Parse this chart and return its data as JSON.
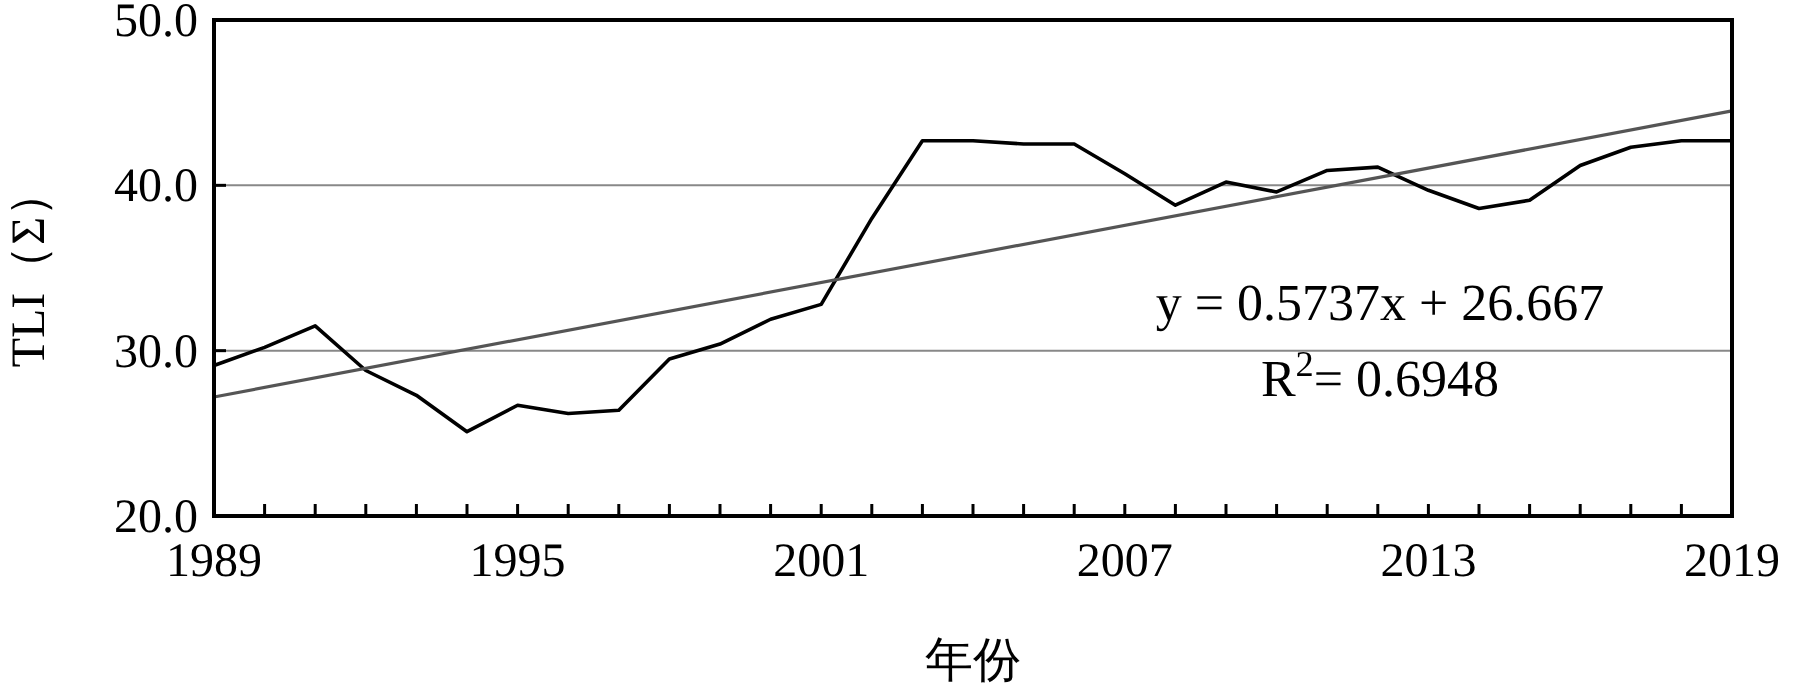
{
  "chart_data": {
    "type": "line",
    "ylabel": "TLI（Σ）",
    "xlabel": "年份",
    "xlim": [
      1989,
      2019
    ],
    "xticks": [
      1989,
      {
        "value": 1990,
        "label": null
      },
      {
        "value": 1991,
        "label": null
      },
      {
        "value": 1992,
        "label": null
      },
      {
        "value": 1993,
        "label": null
      },
      {
        "value": 1994,
        "label": null
      },
      1995,
      {
        "value": 1996,
        "label": null
      },
      {
        "value": 1997,
        "label": null
      },
      {
        "value": 1998,
        "label": null
      },
      {
        "value": 1999,
        "label": null
      },
      {
        "value": 2000,
        "label": null
      },
      2001,
      {
        "value": 2002,
        "label": null
      },
      {
        "value": 2003,
        "label": null
      },
      {
        "value": 2004,
        "label": null
      },
      {
        "value": 2005,
        "label": null
      },
      {
        "value": 2006,
        "label": null
      },
      2007,
      {
        "value": 2008,
        "label": null
      },
      {
        "value": 2009,
        "label": null
      },
      {
        "value": 2010,
        "label": null
      },
      {
        "value": 2011,
        "label": null
      },
      {
        "value": 2012,
        "label": null
      },
      2013,
      {
        "value": 2014,
        "label": null
      },
      {
        "value": 2015,
        "label": null
      },
      {
        "value": 2016,
        "label": null
      },
      {
        "value": 2017,
        "label": null
      },
      {
        "value": 2018,
        "label": null
      },
      2019
    ],
    "ylim": [
      20,
      50
    ],
    "yticks": [
      {
        "value": 20,
        "label": "20.0"
      },
      {
        "value": 30,
        "label": "30.0"
      },
      {
        "value": 40,
        "label": "40.0"
      },
      {
        "value": 50,
        "label": "50.0"
      }
    ],
    "grid": "y",
    "marker": "none",
    "line_style": "solid",
    "series": [
      {
        "type": "line",
        "color": "#000000",
        "x": [
          1989,
          1990,
          1991,
          1992,
          1993,
          1994,
          1995,
          1996,
          1997,
          1998,
          1999,
          2000,
          2001,
          2002,
          2003,
          2004,
          2005,
          2006,
          2007,
          2008,
          2009,
          2010,
          2011,
          2012,
          2013,
          2014,
          2015,
          2016,
          2017,
          2018,
          2019
        ],
        "values": [
          29.1,
          30.2,
          31.5,
          28.8,
          27.3,
          25.1,
          26.7,
          26.2,
          26.4,
          29.5,
          30.4,
          31.9,
          32.8,
          38.0,
          42.7,
          42.7,
          42.5,
          42.5,
          40.7,
          38.8,
          40.2,
          39.6,
          40.9,
          41.1,
          39.7,
          38.6,
          39.1,
          41.2,
          42.3,
          42.7,
          42.7
        ]
      },
      {
        "type": "line",
        "color": "#555555",
        "x": [
          1989,
          2019
        ],
        "values": [
          27.2,
          44.5
        ]
      }
    ],
    "annotations": [
      "y = 0.5737x + 26.667",
      "R$^{2}$= 0.6948"
    ]
  }
}
